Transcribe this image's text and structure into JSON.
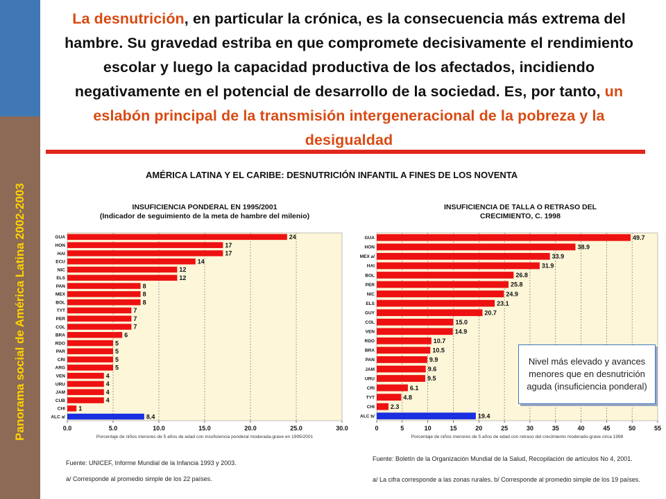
{
  "sidebar": {
    "text": "Panorama social de América Latina 2002-2003"
  },
  "headline": {
    "term": "La desnutrición",
    "part1": ", en particular la crónica, es la consecuencia más extrema del hambre. Su gravedad estriba en que compromete decisivamente el rendimiento escolar y luego la capacidad productiva de los afectados, incidiendo negativamente en el potencial de desarrollo de la sociedad. Es, por tanto, ",
    "highlight": "un eslabón principal de la transmisión intergeneracional de la pobreza y la desigualdad"
  },
  "main_title": "AMÉRICA LATINA Y EL CARIBE: DESNUTRICIÓN INFANTIL A FINES DE LOS NOVENTA",
  "left_panel": {
    "title_line1": "INSUFICIENCIA PONDERAL  EN 1995/2001",
    "title_line2": "(Indicador de seguimiento de la meta de hambre del milenio)",
    "source": "Fuente: UNICEF, Informe Mundial de la Infancia 1993 y 2003.",
    "note": "a/ Corresponde al promedio simple de los 22 países."
  },
  "right_panel": {
    "title_line1": "INSUFICIENCIA DE TALLA O RETRASO DEL",
    "title_line2": "CRECIMIENTO,  C. 1998",
    "source": "Fuente: Boletín de la Organización Mundial de la Salud, Recopilación de artículos No 4, 2001.",
    "note": "a/ La cifra corresponde a las zonas rurales.   b/ Corresponde al promedio simple de los 19 países."
  },
  "callout": {
    "text": "Nivel más elevado y avances menores que en desnutrición aguda (insuficiencia ponderal)"
  },
  "colors": {
    "bar": "#ee1111",
    "average_bar": "#1a2fe0",
    "plot_bg": "#fdf6d8",
    "accent": "#d84a12"
  },
  "chart_data": [
    {
      "type": "bar",
      "orientation": "horizontal",
      "categories": [
        "GUA",
        "HON",
        "HAI",
        "ECU",
        "NIC",
        "ELS",
        "PAN",
        "MEX",
        "BOL",
        "TYT",
        "PER",
        "COL",
        "BRA",
        "RDO",
        "PAR",
        "CRI",
        "ARG",
        "VEN",
        "URU",
        "JAM",
        "CUB",
        "CHI",
        "ALC a/"
      ],
      "values": [
        24,
        17,
        17,
        14,
        12,
        12,
        8,
        8,
        8,
        7,
        7,
        7,
        6,
        5,
        5,
        5,
        5,
        4,
        4,
        4,
        4,
        1,
        8.4
      ],
      "value_labels": [
        "24",
        "17",
        "17",
        "14",
        "12",
        "12",
        "8",
        "8",
        "8",
        "7",
        "7",
        "7",
        "6",
        "5",
        "5",
        "5",
        "5",
        "4",
        "4",
        "4",
        "4",
        "1",
        "8.4"
      ],
      "highlight_category": "ALC a/",
      "xlim": [
        0,
        30
      ],
      "xticks": [
        "0.0",
        "5.0",
        "10.0",
        "15.0",
        "20.0",
        "25.0",
        "30.0"
      ],
      "xlabel": "Porcentaje de niños menores de 5 años de edad con insuficiencia ponderal moderada-grave en 1995/2001",
      "grid": true
    },
    {
      "type": "bar",
      "orientation": "horizontal",
      "categories": [
        "GUA",
        "HON",
        "MEX a/",
        "HAI",
        "BOL",
        "PER",
        "NIC",
        "ELS",
        "GUY",
        "COL",
        "VEN",
        "RDO",
        "BRA",
        "PAN",
        "JAM",
        "URU",
        "CRI",
        "TYT",
        "CHI",
        "ALC b/"
      ],
      "values": [
        49.7,
        38.9,
        33.9,
        31.9,
        26.8,
        25.8,
        24.9,
        23.1,
        20.7,
        15.0,
        14.9,
        10.7,
        10.5,
        9.9,
        9.6,
        9.5,
        6.1,
        4.8,
        2.3,
        19.4
      ],
      "value_labels": [
        "49.7",
        "38.9",
        "33.9",
        "31.9",
        "26.8",
        "25.8",
        "24.9",
        "23.1",
        "20.7",
        "15.0",
        "14.9",
        "10.7",
        "10.5",
        "9.9",
        "9.6",
        "9.5",
        "6.1",
        "4.8",
        "2.3",
        "19.4"
      ],
      "highlight_category": "ALC b/",
      "xlim": [
        0,
        55
      ],
      "xticks": [
        "0",
        "5",
        "10",
        "15",
        "20",
        "25",
        "30",
        "35",
        "40",
        "45",
        "50",
        "55"
      ],
      "xlabel": "Porcentaje de niños menores de 5 años de edad con retraso del crecimiento moderado-grave circa 1998",
      "grid": true
    }
  ]
}
